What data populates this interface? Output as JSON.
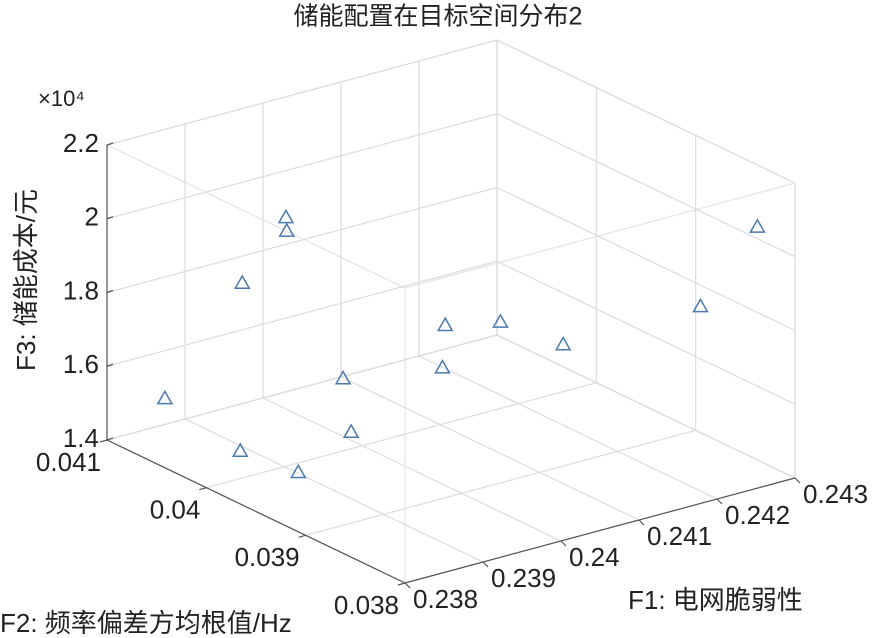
{
  "chart_data": {
    "type": "scatter3d",
    "title": "储能配置在目标空间分布2",
    "xlabel": "F1: 电网脆弱性",
    "ylabel": "F2: 频率偏差方均根值/Hz",
    "zlabel": "F3: 储能成本/元",
    "z_exponent_label": "×10⁴",
    "x": [
      0.23836,
      0.23818,
      0.23816,
      0.23922,
      0.23988,
      0.23897,
      0.23953,
      0.23954,
      0.24039,
      0.24119,
      0.24228,
      0.24232,
      0.24217,
      0.2429
    ],
    "y": [
      0.0407,
      0.0398,
      0.0392,
      0.0395,
      0.0401,
      0.0404,
      0.0404,
      0.0404,
      0.0395,
      0.0401,
      0.0404,
      0.0398,
      0.0383,
      0.0383
    ],
    "z": [
      1.531,
      1.515,
      1.536,
      1.546,
      1.576,
      1.848,
      1.994,
      1.957,
      1.654,
      1.646,
      1.554,
      1.568,
      1.874,
      2.048
    ],
    "color": "#4a7aad",
    "xlim": [
      0.238,
      0.243
    ],
    "xticks": [
      0.238,
      0.239,
      0.24,
      0.241,
      0.242,
      0.243
    ],
    "ylim": [
      0.038,
      0.041
    ],
    "yticks": [
      0.038,
      0.039,
      0.04,
      0.041
    ],
    "zlim": [
      1.4,
      2.2
    ],
    "zticks": [
      1.4,
      1.6,
      1.8,
      2,
      2.2
    ],
    "grid": true
  }
}
